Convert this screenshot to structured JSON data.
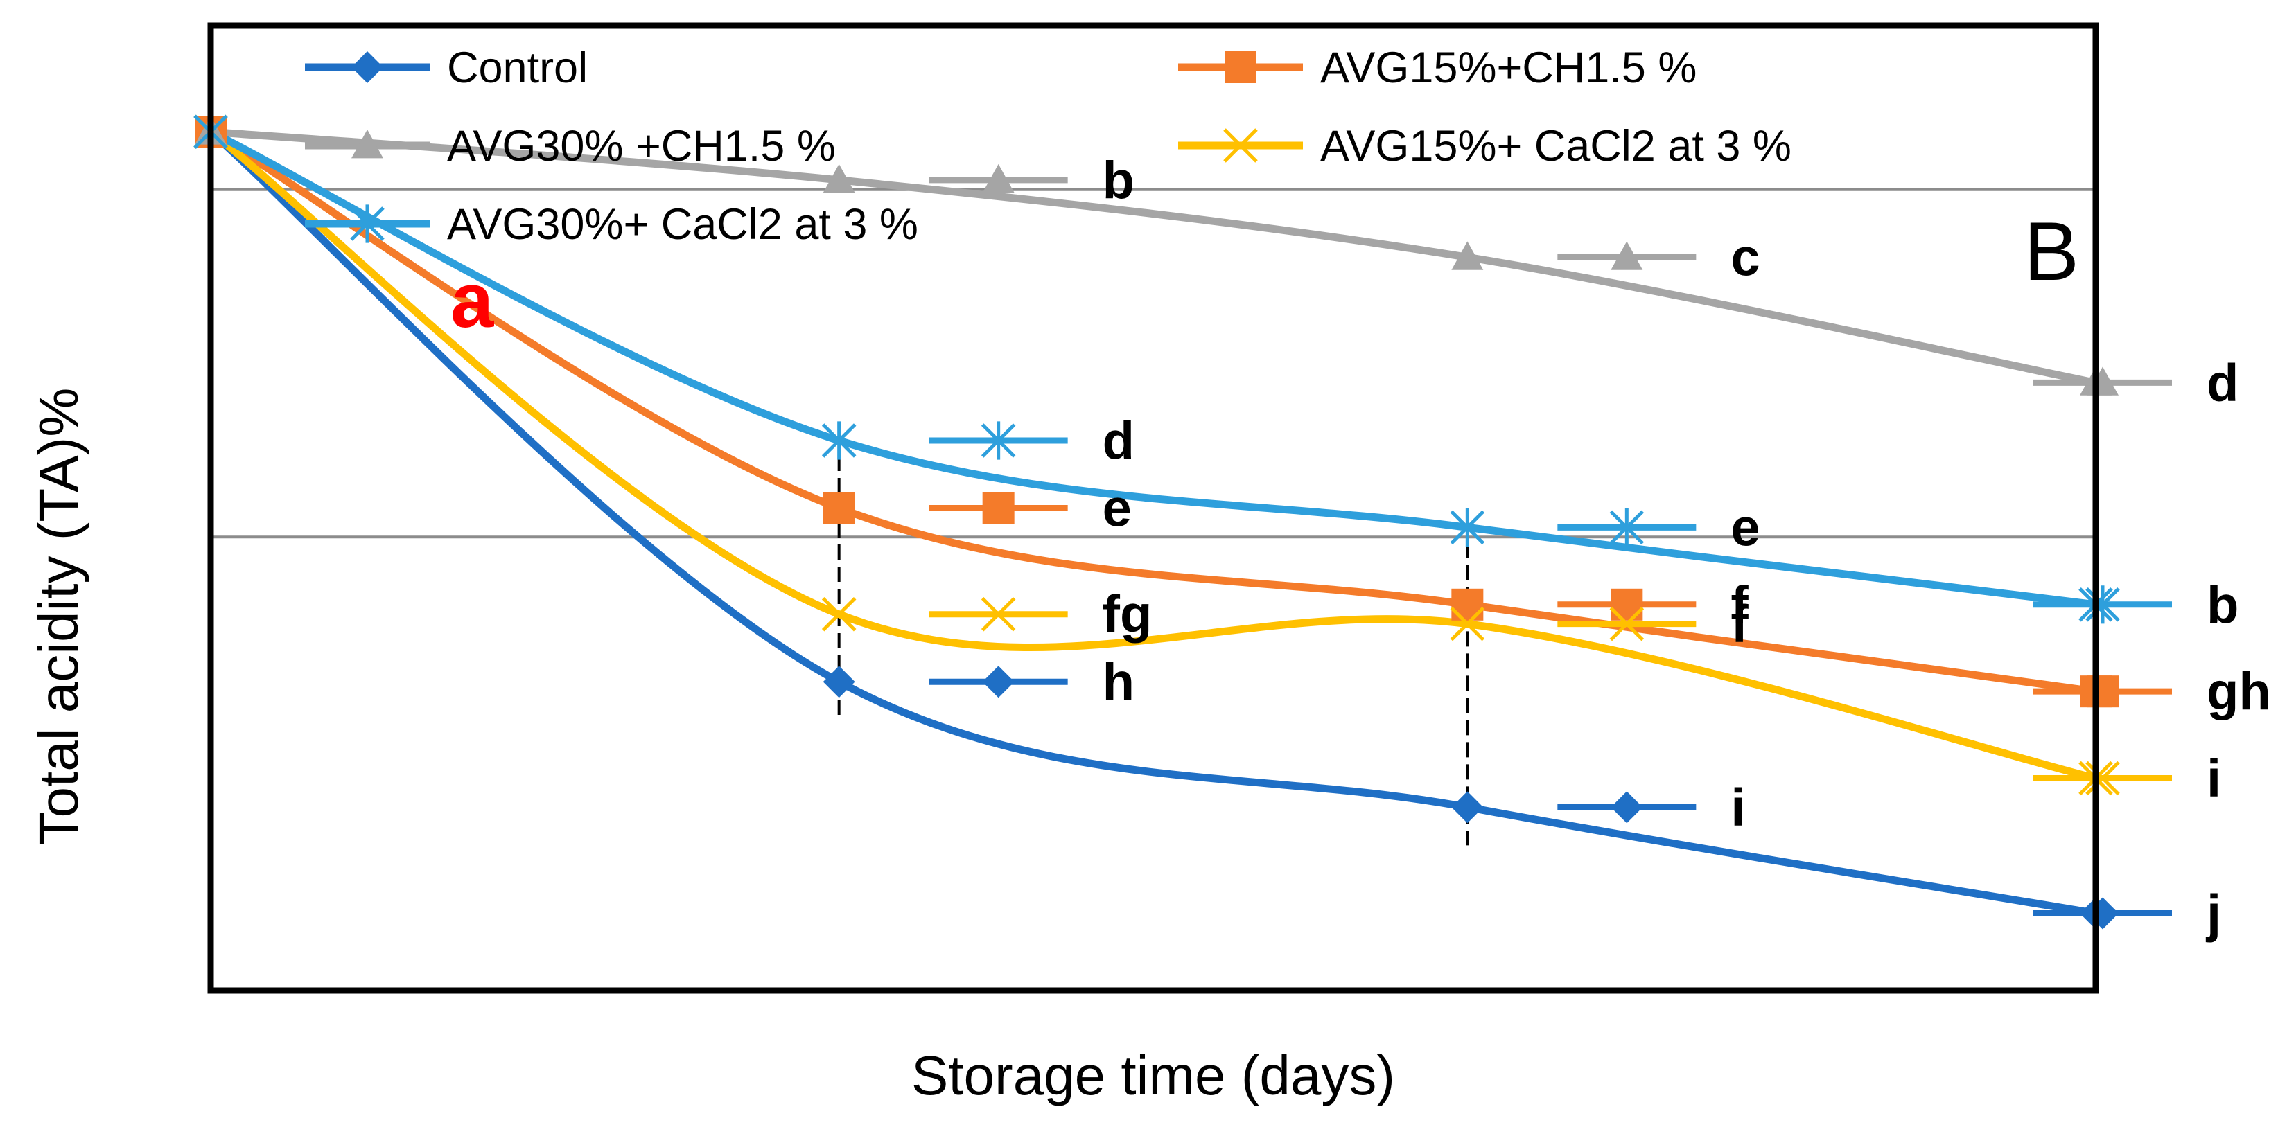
{
  "chart_data": {
    "type": "line",
    "panel_label": "B",
    "xlabel": "Storage time (days)",
    "ylabel": "Total acidity (TA)%",
    "x": [
      0,
      1,
      2,
      3
    ],
    "xlim": [
      0,
      3
    ],
    "ylim": [
      0,
      100
    ],
    "gridlines_y": [
      83,
      47
    ],
    "significance_bars_x": [
      1,
      2
    ],
    "top_label": {
      "text": "a",
      "color": "#ff0000"
    },
    "series": [
      {
        "name": "Control",
        "color": "#1f6fc5",
        "marker": "diamond",
        "values": [
          89,
          32,
          19,
          8
        ],
        "letters": [
          "",
          "h",
          "i",
          "j"
        ]
      },
      {
        "name": "AVG15%+CH1.5 %",
        "color": "#f47b2a",
        "marker": "square",
        "values": [
          89,
          50,
          40,
          31
        ],
        "letters": [
          "",
          "e",
          "f",
          "gh"
        ]
      },
      {
        "name": "AVG30% +CH1.5 %",
        "color": "#a5a5a5",
        "marker": "triangle",
        "values": [
          89,
          84,
          76,
          63
        ],
        "letters": [
          "",
          "b",
          "c",
          "d"
        ]
      },
      {
        "name": "AVG15%+ CaCl2  at 3 %",
        "color": "#ffc000",
        "marker": "x",
        "values": [
          89,
          39,
          38,
          22
        ],
        "letters": [
          "",
          "fg",
          "f",
          "i"
        ]
      },
      {
        "name": "AVG30%+  CaCl2  at 3 %",
        "color": "#2e9fdc",
        "marker": "asterisk",
        "values": [
          89,
          57,
          48,
          40
        ],
        "letters": [
          "",
          "d",
          "e",
          "b"
        ]
      }
    ]
  }
}
